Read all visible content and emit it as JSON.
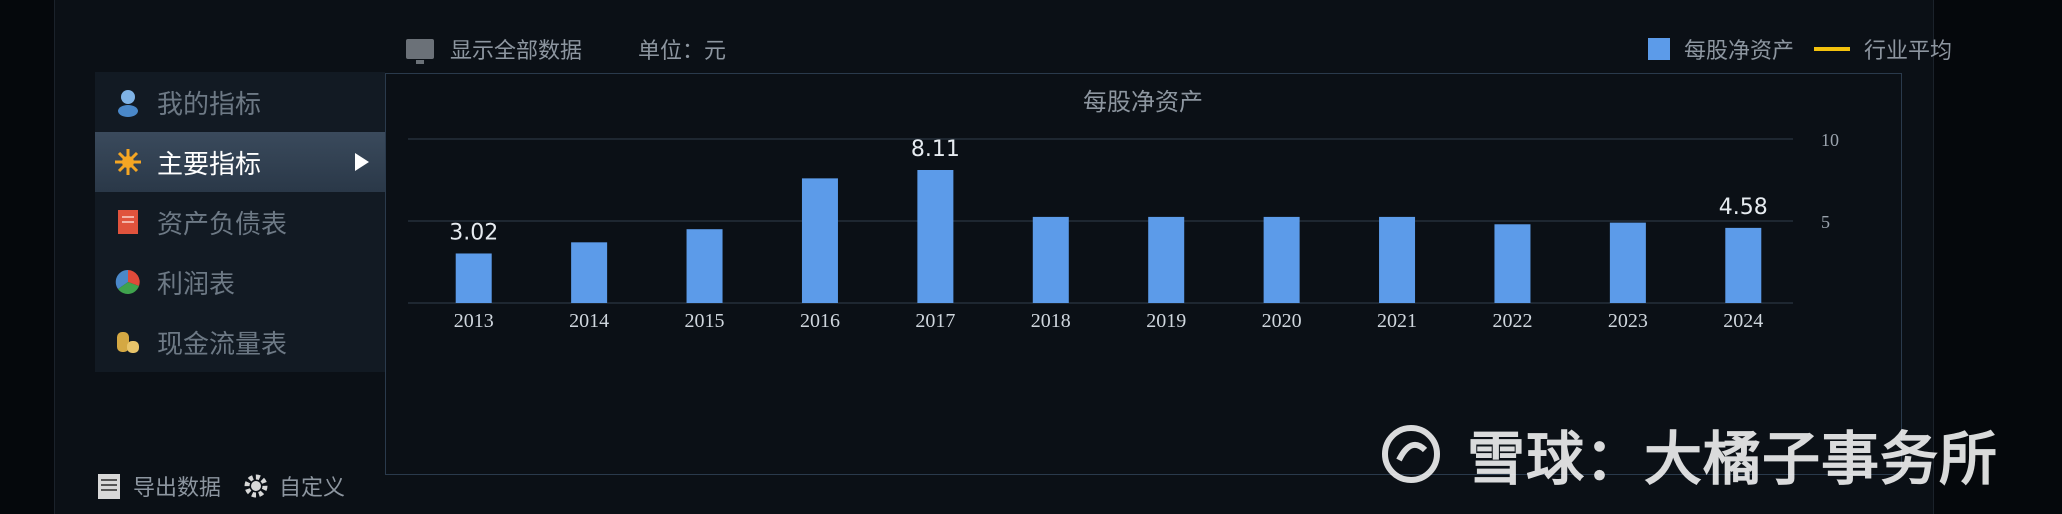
{
  "topbar": {
    "show_all": "显示全部数据",
    "unit": "单位：元"
  },
  "legend": {
    "series_label": "每股净资产",
    "industry_label": "行业平均",
    "series_color": "#5c9be9",
    "industry_color": "#f4c20d"
  },
  "sidebar": {
    "items": [
      {
        "label": "我的指标",
        "icon": "person-icon"
      },
      {
        "label": "主要指标",
        "icon": "star-icon",
        "active": true
      },
      {
        "label": "资产负债表",
        "icon": "document-icon"
      },
      {
        "label": "利润表",
        "icon": "pie-icon"
      },
      {
        "label": "现金流量表",
        "icon": "coins-icon"
      }
    ]
  },
  "footer": {
    "export": "导出数据",
    "customize": "自定义"
  },
  "watermark": {
    "text": "雪球：大橘子事务所"
  },
  "chart_data": {
    "type": "bar",
    "title": "每股净资产",
    "categories": [
      "2013",
      "2014",
      "2015",
      "2016",
      "2017",
      "2018",
      "2019",
      "2020",
      "2021",
      "2022",
      "2023",
      "2024"
    ],
    "series": [
      {
        "name": "每股净资产",
        "values": [
          3.02,
          3.7,
          4.5,
          7.6,
          8.11,
          5.25,
          5.25,
          5.25,
          5.25,
          4.8,
          4.9,
          4.58
        ]
      }
    ],
    "data_labels": [
      {
        "index": 0,
        "text": "3.02"
      },
      {
        "index": 4,
        "text": "8.11"
      },
      {
        "index": 11,
        "text": "4.58"
      }
    ],
    "yticks": [
      5,
      10
    ],
    "ylim": [
      0,
      10
    ],
    "grid": true,
    "legend_position": "top-right"
  }
}
